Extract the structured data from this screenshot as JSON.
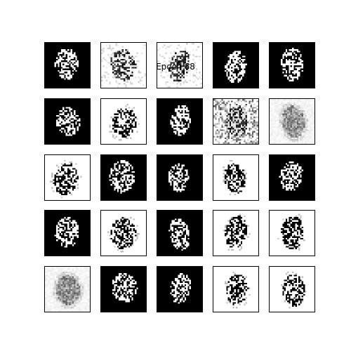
{
  "title": "Epoch 68",
  "grid": {
    "rows": 5,
    "cols": 5,
    "tiles": [
      {
        "style": "dark"
      },
      {
        "style": "noisy"
      },
      {
        "style": "noisy"
      },
      {
        "style": "dark"
      },
      {
        "style": "dark"
      },
      {
        "style": "dark"
      },
      {
        "style": "light"
      },
      {
        "style": "dark"
      },
      {
        "style": "static"
      },
      {
        "style": "blurry"
      },
      {
        "style": "light"
      },
      {
        "style": "dark"
      },
      {
        "style": "dark"
      },
      {
        "style": "light"
      },
      {
        "style": "dark"
      },
      {
        "style": "dark"
      },
      {
        "style": "light"
      },
      {
        "style": "dark"
      },
      {
        "style": "light"
      },
      {
        "style": "light"
      },
      {
        "style": "blurry"
      },
      {
        "style": "dark"
      },
      {
        "style": "dark"
      },
      {
        "style": "light"
      },
      {
        "style": "light"
      }
    ]
  }
}
